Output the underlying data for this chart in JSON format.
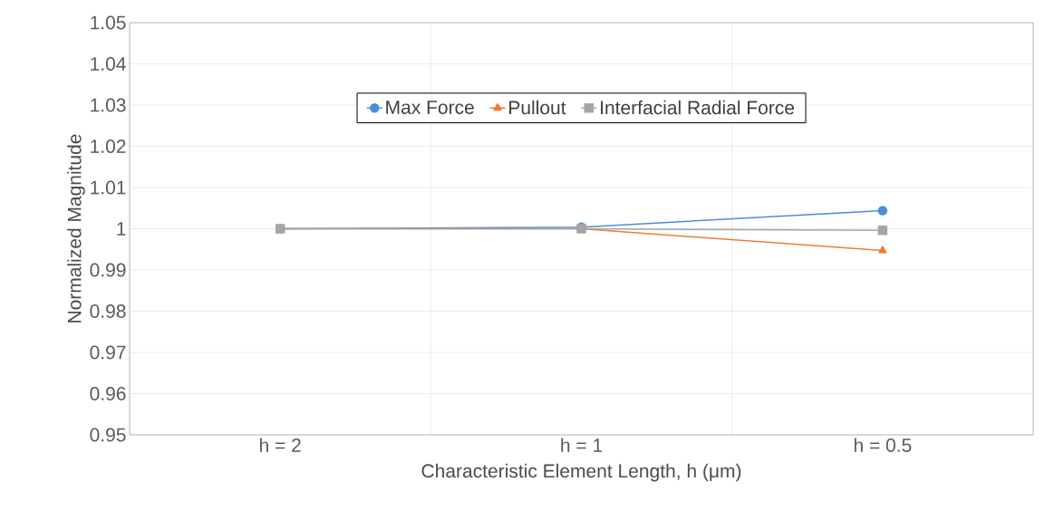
{
  "chart_data": {
    "type": "line",
    "xlabel": "Characteristic Element Length, h  (μm)",
    "ylabel": "Normalized Magnitude",
    "categories": [
      "h = 2",
      "h = 1",
      "h = 0.5"
    ],
    "series": [
      {
        "name": "Max Force",
        "color": "#4a8fd6",
        "marker": "circle",
        "values": [
          1.0,
          1.0004,
          1.0044
        ]
      },
      {
        "name": "Pullout",
        "color": "#ed7d31",
        "marker": "triangle",
        "values": [
          1.0,
          1.0,
          0.9947
        ]
      },
      {
        "name": "Interfacial Radial Force",
        "color": "#a5a5a5",
        "marker": "square",
        "values": [
          1.0,
          1.0,
          0.9996
        ]
      }
    ],
    "ylim": [
      0.95,
      1.05
    ],
    "yticks": [
      0.95,
      0.96,
      0.97,
      0.98,
      0.99,
      1,
      1.01,
      1.02,
      1.03,
      1.04,
      1.05
    ],
    "grid": true,
    "legend": "top"
  }
}
